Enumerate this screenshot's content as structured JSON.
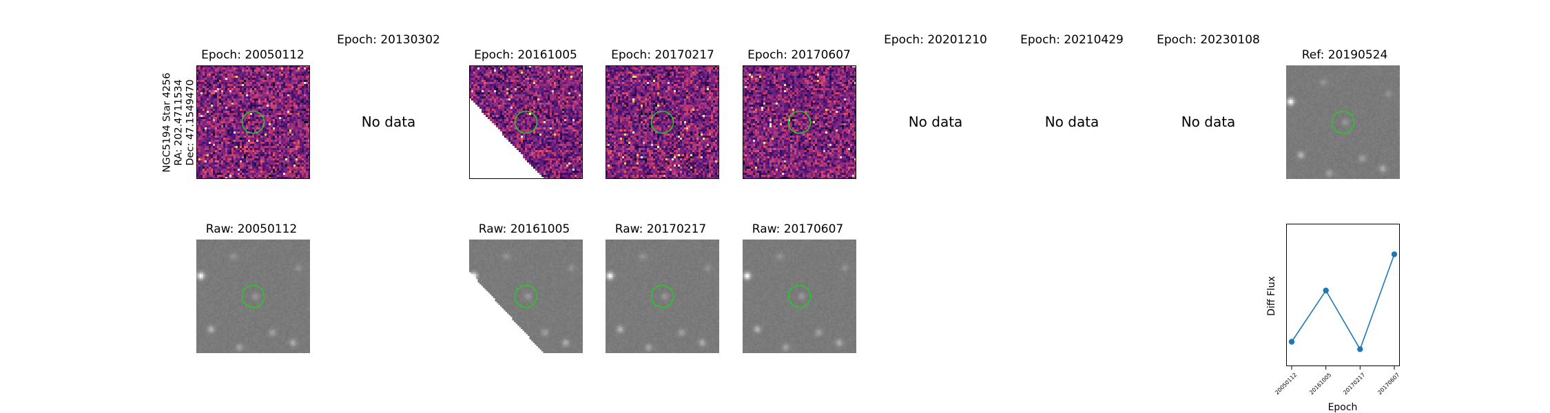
{
  "object": {
    "name": "NGC5194 Star 4256",
    "ra": "RA: 202.4711534",
    "dec": "Dec: 47.1549470"
  },
  "top_row": [
    {
      "title": "Epoch: 20050112",
      "has_data": true
    },
    {
      "title": "Epoch: 20130302",
      "has_data": false,
      "message": "No data"
    },
    {
      "title": "Epoch: 20161005",
      "has_data": true
    },
    {
      "title": "Epoch: 20170217",
      "has_data": true
    },
    {
      "title": "Epoch: 20170607",
      "has_data": true
    },
    {
      "title": "Epoch: 20201210",
      "has_data": false,
      "message": "No data"
    },
    {
      "title": "Epoch: 20210429",
      "has_data": false,
      "message": "No data"
    },
    {
      "title": "Epoch: 20230108",
      "has_data": false,
      "message": "No data"
    },
    {
      "title": "Ref: 20190524",
      "has_data": true
    }
  ],
  "bottom_row": [
    {
      "title": "Raw: 20050112"
    },
    {
      "title": "Raw: 20161005"
    },
    {
      "title": "Raw: 20170217"
    },
    {
      "title": "Raw: 20170607"
    }
  ],
  "colors": {
    "marker_circle": "#22cc22",
    "line": "#1f77b4",
    "diff_low": "#3b0f70",
    "diff_high": "#fcfdbf",
    "raw_background": "#808080"
  },
  "chart_data": {
    "type": "line",
    "title": "",
    "xlabel": "Epoch",
    "ylabel": "Diff Flux",
    "categories": [
      "20050112",
      "20161005",
      "20170217",
      "20170607"
    ],
    "series": [
      {
        "name": "Diff Flux",
        "values": [
          0.1,
          0.58,
          0.03,
          0.92
        ]
      }
    ],
    "ylim": [
      0.0,
      1.0
    ],
    "y_ticks_shown": false,
    "grid": false
  }
}
